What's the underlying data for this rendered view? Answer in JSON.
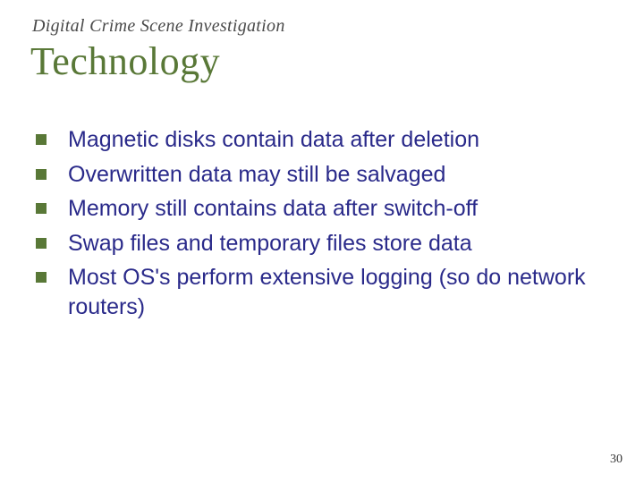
{
  "header": {
    "subtitle": "Digital Crime Scene Investigation",
    "title": "Technology"
  },
  "bullets": [
    "Magnetic disks contain data after deletion",
    "Overwritten data may still be salvaged",
    "Memory still contains data after switch-off",
    "Swap files and temporary files store data",
    "Most OS's perform extensive logging (so do network routers)"
  ],
  "page_number": "30",
  "styling": {
    "subtitle_color": "#4a4a4a",
    "subtitle_fontsize": 20,
    "title_color": "#597837",
    "title_fontsize": 44,
    "bullet_marker_color": "#597837",
    "bullet_marker_size": 12,
    "bullet_text_color": "#2a2a8a",
    "bullet_text_fontsize": 25,
    "background_color": "#ffffff",
    "page_number_color": "#333333",
    "page_number_fontsize": 14
  }
}
